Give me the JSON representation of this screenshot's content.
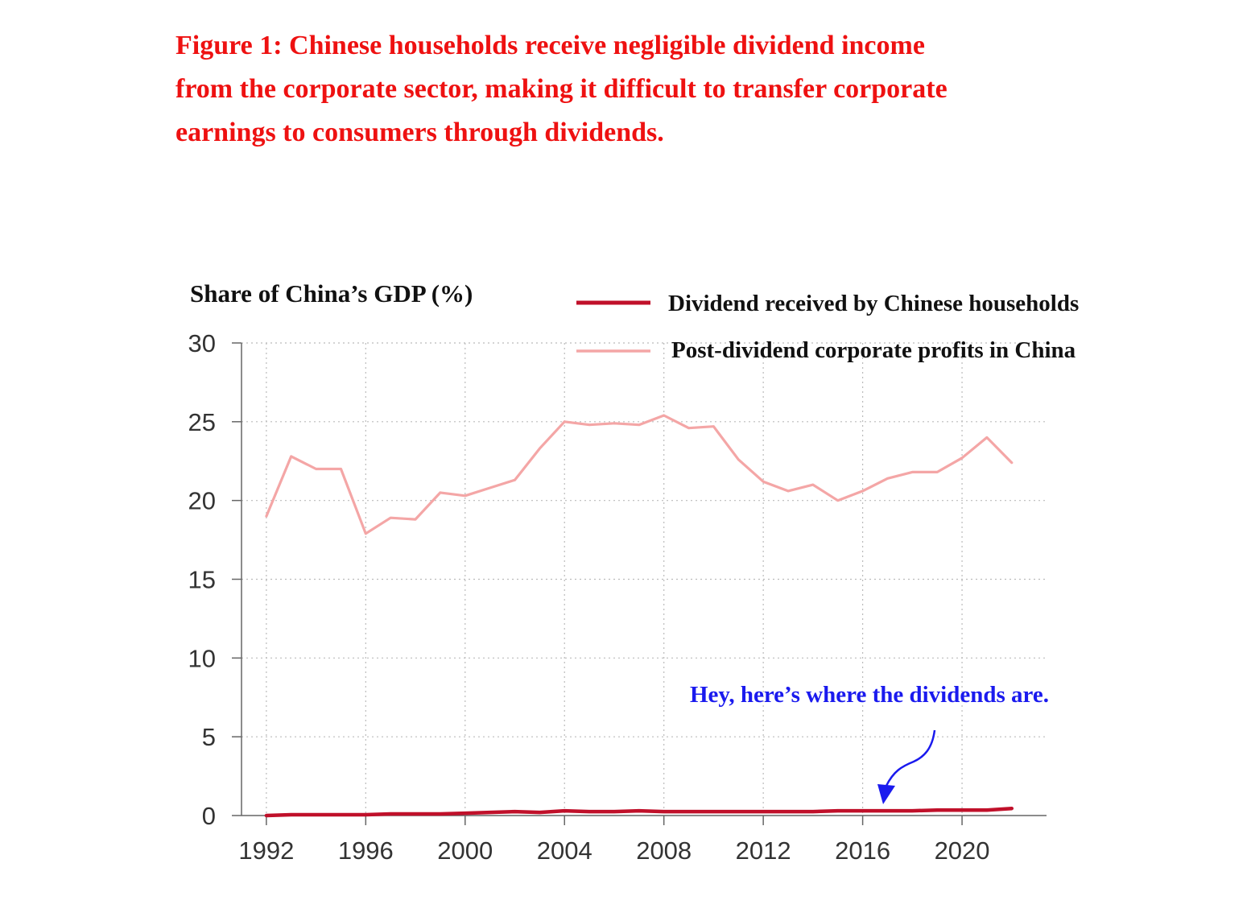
{
  "headline": {
    "line1": "Figure 1: Chinese households receive negligible dividend income",
    "line2": "from the corporate sector, making it difficult to transfer corporate",
    "line3": "earnings to consumers through dividends.",
    "color": "#ee1111"
  },
  "chart_data": {
    "type": "line",
    "title": "Figure 1: Chinese households receive negligible dividend income from the corporate sector, making it difficult to transfer corporate earnings to consumers through dividends.",
    "ylabel": "Share of China’s GDP (%)",
    "xlabel": "",
    "ylim": [
      0,
      30
    ],
    "xlim": [
      1992,
      2023
    ],
    "yticks": [
      "0",
      "5",
      "10",
      "15",
      "20",
      "25",
      "30"
    ],
    "xticks": [
      "1992",
      "1996",
      "2000",
      "2004",
      "2008",
      "2012",
      "2016",
      "2020"
    ],
    "grid": "dotted",
    "legend_position": "top-right",
    "x": [
      1992,
      1993,
      1994,
      1995,
      1996,
      1997,
      1998,
      1999,
      2000,
      2001,
      2002,
      2003,
      2004,
      2005,
      2006,
      2007,
      2008,
      2009,
      2010,
      2011,
      2012,
      2013,
      2014,
      2015,
      2016,
      2017,
      2018,
      2019,
      2020,
      2021,
      2022
    ],
    "series": [
      {
        "name": "Dividend received by Chinese households",
        "color": "#c0102a",
        "values": [
          0.0,
          0.05,
          0.05,
          0.05,
          0.05,
          0.1,
          0.1,
          0.1,
          0.15,
          0.2,
          0.25,
          0.2,
          0.3,
          0.25,
          0.25,
          0.3,
          0.25,
          0.25,
          0.25,
          0.25,
          0.25,
          0.25,
          0.25,
          0.3,
          0.3,
          0.3,
          0.3,
          0.35,
          0.35,
          0.35,
          0.45
        ]
      },
      {
        "name": "Post-dividend corporate profits in China",
        "color": "#f4a6a6",
        "values": [
          19.0,
          22.8,
          22.0,
          22.0,
          17.9,
          18.9,
          18.8,
          20.5,
          20.3,
          20.8,
          21.3,
          23.3,
          25.0,
          24.8,
          24.9,
          24.8,
          25.4,
          24.6,
          24.7,
          22.6,
          21.2,
          20.6,
          21.0,
          20.0,
          20.6,
          21.4,
          21.8,
          21.8,
          22.7,
          24.0,
          22.4
        ]
      }
    ],
    "annotation": {
      "text": "Hey, here’s where the dividends are.",
      "color": "#1a1aee",
      "points_to_x": 2017,
      "points_to_y": 0.6
    }
  }
}
